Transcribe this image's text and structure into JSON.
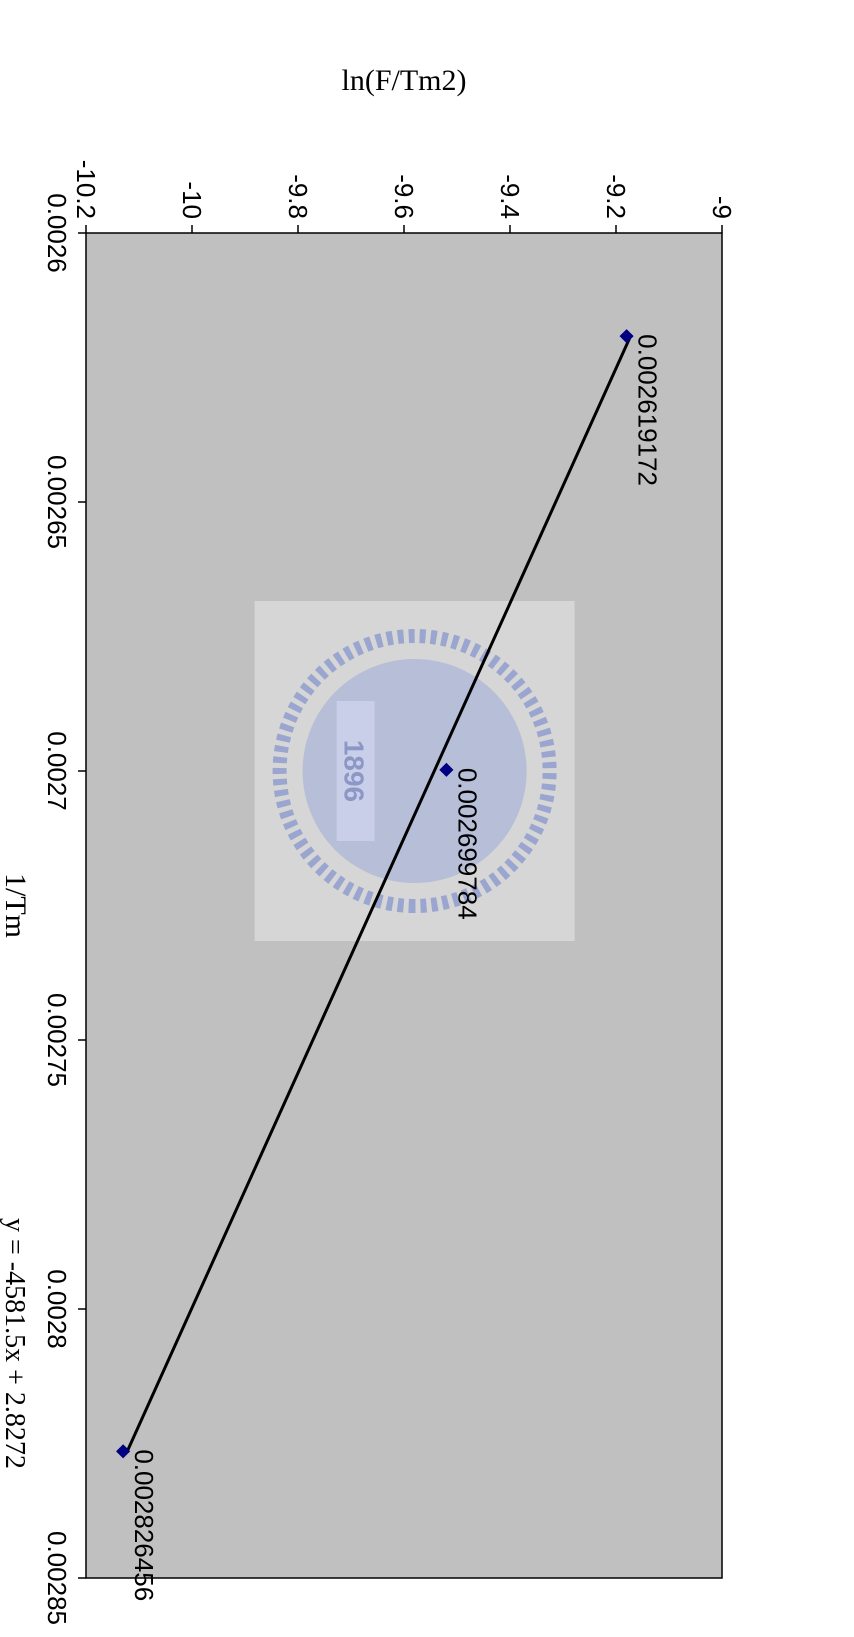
{
  "chart_data": {
    "type": "scatter",
    "xlabel": "1/Tm",
    "ylabel": "ln(F/Tm2)",
    "xlim": [
      0.0026,
      0.00285
    ],
    "ylim": [
      -10.2,
      -9
    ],
    "x_ticks": [
      "0.0026",
      "0.00265",
      "0.0027",
      "0.00275",
      "0.0028",
      "0.00285"
    ],
    "y_ticks": [
      "-9",
      "-9.2",
      "-9.4",
      "-9.6",
      "-9.8",
      "-10",
      "-10.2"
    ],
    "grid": false,
    "plot_background": "#c0c0c0",
    "marker_color": "#000080",
    "trendline_color": "#000000",
    "series": [
      {
        "x": [
          0.002619172,
          0.002699784,
          0.002826456
        ],
        "y": [
          -9.18,
          -9.52,
          -10.13
        ],
        "point_labels": [
          "0.002619172",
          "0.002699784",
          "0.002826456"
        ]
      }
    ],
    "trendline": {
      "equation": "y = -4581.5x + 2.8272",
      "slope": -4581.5,
      "intercept": 2.8272
    },
    "watermark": {
      "text": "1896",
      "kind": "logo"
    }
  }
}
